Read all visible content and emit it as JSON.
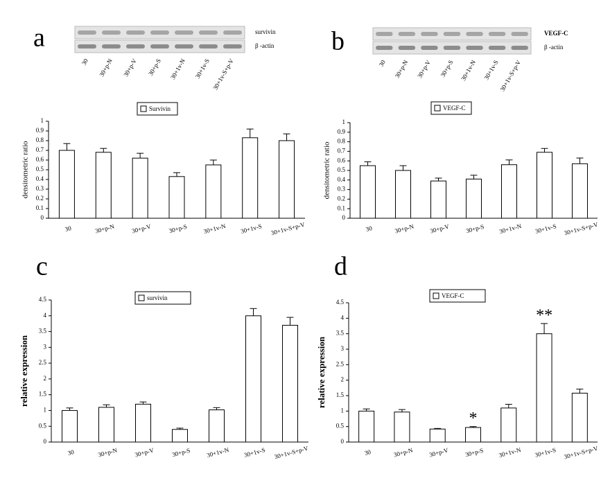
{
  "chart_data": [
    {
      "type": "bar",
      "panel": "a",
      "blot": {
        "bands": [
          "survivin",
          "β -actin"
        ],
        "lanes": [
          "30",
          "30+p-N",
          "30+p-V",
          "30+p-S",
          "30+1v-N",
          "30+1v-S",
          "30+1v-S+p-V"
        ]
      },
      "ylabel": "densitometric ratio",
      "categories": [
        "30",
        "30+p-N",
        "30+p-V",
        "30+p-S",
        "30+1v-N",
        "30+1v-S",
        "30+1v-S+p-V"
      ],
      "series": [
        {
          "name": "Survivin",
          "color": "#ffffff",
          "values": [
            0.7,
            0.68,
            0.62,
            0.43,
            0.55,
            0.83,
            0.8
          ],
          "errors": [
            0.07,
            0.04,
            0.05,
            0.04,
            0.05,
            0.09,
            0.07
          ]
        }
      ],
      "ylim": [
        0,
        1
      ],
      "yticks": [
        0,
        0.1,
        0.2,
        0.3,
        0.4,
        0.5,
        0.6,
        0.7,
        0.8,
        0.9,
        1
      ]
    },
    {
      "type": "bar",
      "panel": "b",
      "blot": {
        "bands": [
          "VEGF-C",
          "β -actin"
        ],
        "lanes": [
          "30",
          "30+p-N",
          "30+p-V",
          "30+p-S",
          "30+1v-N",
          "30+1v-S",
          "30+1v-S+p-V"
        ]
      },
      "ylabel": "densitometric ratio",
      "categories": [
        "30",
        "30+p-N",
        "30+p-V",
        "30+p-S",
        "30+1v-N",
        "30+1v-S",
        "30+1v-S+p-V"
      ],
      "series": [
        {
          "name": "VEGF-C",
          "color": "#ffffff",
          "values": [
            0.55,
            0.5,
            0.39,
            0.41,
            0.56,
            0.69,
            0.57
          ],
          "errors": [
            0.04,
            0.05,
            0.03,
            0.04,
            0.05,
            0.04,
            0.06
          ]
        }
      ],
      "ylim": [
        0,
        1
      ],
      "yticks": [
        0,
        0.1,
        0.2,
        0.3,
        0.4,
        0.5,
        0.6,
        0.7,
        0.8,
        0.9,
        1
      ]
    },
    {
      "type": "bar",
      "panel": "c",
      "ylabel": "relative expression",
      "categories": [
        "30",
        "30+p-N",
        "30+p-V",
        "30+p-S",
        "30+1v-N",
        "30+1v-S",
        "30+1v-S+p-V"
      ],
      "series": [
        {
          "name": "survivin",
          "color": "#ffffff",
          "values": [
            1.0,
            1.1,
            1.2,
            0.4,
            1.02,
            4.0,
            3.7
          ],
          "errors": [
            0.08,
            0.08,
            0.07,
            0.04,
            0.07,
            0.23,
            0.25
          ]
        }
      ],
      "ylim": [
        0,
        4.5
      ],
      "yticks": [
        0,
        0.5,
        1,
        1.5,
        2,
        2.5,
        3,
        3.5,
        4,
        4.5
      ]
    },
    {
      "type": "bar",
      "panel": "d",
      "ylabel": "relative expression",
      "categories": [
        "30",
        "30+p-N",
        "30+p-V",
        "30+p-S",
        "30+1v-N",
        "30+1v-S",
        "30+1v-S+p-V"
      ],
      "series": [
        {
          "name": "VEGF-C",
          "color": "#ffffff",
          "values": [
            1.0,
            0.97,
            0.42,
            0.47,
            1.1,
            3.5,
            1.58
          ],
          "errors": [
            0.07,
            0.08,
            0.02,
            0.03,
            0.12,
            0.33,
            0.13
          ]
        }
      ],
      "annotations": [
        null,
        null,
        null,
        "*",
        null,
        "**",
        null
      ],
      "ylim": [
        0,
        4.5
      ],
      "yticks": [
        0,
        0.5,
        1,
        1.5,
        2,
        2.5,
        3,
        3.5,
        4,
        4.5
      ]
    }
  ]
}
